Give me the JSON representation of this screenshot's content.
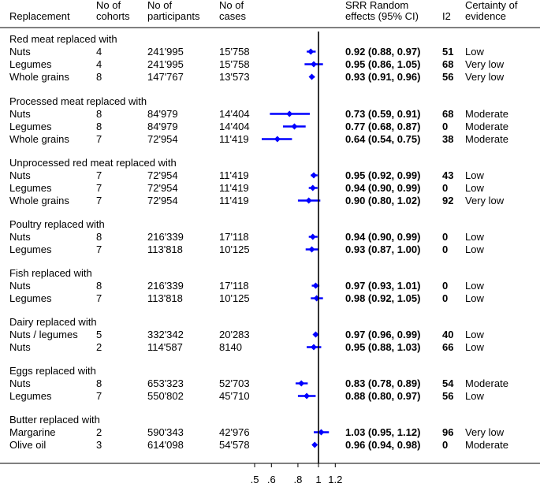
{
  "chart_data": {
    "type": "forest",
    "headers": {
      "replacement": "Replacement",
      "cohorts": [
        "No of",
        "cohorts"
      ],
      "participants": [
        "No of",
        "participants"
      ],
      "cases": [
        "No of",
        "cases"
      ],
      "effect": [
        "SRR Random",
        "effects (95% CI)"
      ],
      "i2": "I2",
      "certainty": [
        "Certainty of",
        "evidence"
      ]
    },
    "x_ticks": [
      ".5",
      ".6",
      ".8",
      "1",
      "1.2"
    ],
    "x_tick_values": [
      0.5,
      0.6,
      0.8,
      1.0,
      1.2
    ],
    "xlim": [
      0.4,
      1.26
    ],
    "x_scale": "log",
    "reference_line": 1,
    "marker_color": "#0000ff",
    "groups": [
      {
        "title": "Red meat replaced with",
        "rows": [
          {
            "label": "Nuts",
            "cohorts": "4",
            "participants": "241'995",
            "cases": "15'758",
            "rr": 0.92,
            "lo": 0.88,
            "hi": 0.97,
            "effect": "0.92 (0.88, 0.97)",
            "i2": "51",
            "certainty": "Low"
          },
          {
            "label": "Legumes",
            "cohorts": "4",
            "participants": "241'995",
            "cases": "15'758",
            "rr": 0.95,
            "lo": 0.86,
            "hi": 1.05,
            "effect": "0.95 (0.86, 1.05)",
            "i2": "68",
            "certainty": "Very low"
          },
          {
            "label": "Whole grains",
            "cohorts": "8",
            "participants": "147'767",
            "cases": "13'573",
            "rr": 0.93,
            "lo": 0.91,
            "hi": 0.96,
            "effect": "0.93 (0.91, 0.96)",
            "i2": "56",
            "certainty": "Very low"
          }
        ]
      },
      {
        "title": "Processed meat replaced with",
        "rows": [
          {
            "label": "Nuts",
            "cohorts": "8",
            "participants": "84'979",
            "cases": "14'404",
            "rr": 0.73,
            "lo": 0.59,
            "hi": 0.91,
            "effect": "0.73 (0.59, 0.91)",
            "i2": "68",
            "certainty": "Moderate"
          },
          {
            "label": "Legumes",
            "cohorts": "8",
            "participants": "84'979",
            "cases": "14'404",
            "rr": 0.77,
            "lo": 0.68,
            "hi": 0.87,
            "effect": "0.77 (0.68, 0.87)",
            "i2": "0",
            "certainty": "Moderate"
          },
          {
            "label": "Whole grains",
            "cohorts": "7",
            "participants": "72'954",
            "cases": "11'419",
            "rr": 0.64,
            "lo": 0.54,
            "hi": 0.75,
            "effect": "0.64 (0.54, 0.75)",
            "i2": "38",
            "certainty": "Moderate"
          }
        ]
      },
      {
        "title": "Unprocessed red meat replaced with",
        "rows": [
          {
            "label": "Nuts",
            "cohorts": "7",
            "participants": "72'954",
            "cases": "11'419",
            "rr": 0.95,
            "lo": 0.92,
            "hi": 0.99,
            "effect": "0.95 (0.92, 0.99)",
            "i2": "43",
            "certainty": "Low"
          },
          {
            "label": "Legumes",
            "cohorts": "7",
            "participants": "72'954",
            "cases": "11'419",
            "rr": 0.94,
            "lo": 0.9,
            "hi": 0.99,
            "effect": "0.94 (0.90, 0.99)",
            "i2": "0",
            "certainty": "Low"
          },
          {
            "label": "Whole grains",
            "cohorts": "7",
            "participants": "72'954",
            "cases": "11'419",
            "rr": 0.9,
            "lo": 0.8,
            "hi": 1.02,
            "effect": "0.90 (0.80, 1.02)",
            "i2": "92",
            "certainty": "Very low"
          }
        ]
      },
      {
        "title": "Poultry replaced with",
        "rows": [
          {
            "label": "Nuts",
            "cohorts": "8",
            "participants": "216'339",
            "cases": "17'118",
            "rr": 0.94,
            "lo": 0.9,
            "hi": 0.99,
            "effect": "0.94 (0.90, 0.99)",
            "i2": "0",
            "certainty": "Low"
          },
          {
            "label": "Legumes",
            "cohorts": "7",
            "participants": "113'818",
            "cases": "10'125",
            "rr": 0.93,
            "lo": 0.87,
            "hi": 1.0,
            "effect": "0.93 (0.87, 1.00)",
            "i2": "0",
            "certainty": "Low"
          }
        ]
      },
      {
        "title": "Fish replaced with",
        "rows": [
          {
            "label": "Nuts",
            "cohorts": "8",
            "participants": "216'339",
            "cases": "17'118",
            "rr": 0.97,
            "lo": 0.93,
            "hi": 1.01,
            "effect": "0.97 (0.93, 1.01)",
            "i2": "0",
            "certainty": "Low"
          },
          {
            "label": "Legumes",
            "cohorts": "7",
            "participants": "113'818",
            "cases": "10'125",
            "rr": 0.98,
            "lo": 0.92,
            "hi": 1.05,
            "effect": "0.98 (0.92, 1.05)",
            "i2": "0",
            "certainty": "Low"
          }
        ]
      },
      {
        "title": "Dairy replaced with",
        "rows": [
          {
            "label": "Nuts / legumes",
            "cohorts": "5",
            "participants": "332'342",
            "cases": "20'283",
            "rr": 0.97,
            "lo": 0.96,
            "hi": 0.99,
            "effect": "0.97 (0.96, 0.99)",
            "i2": "40",
            "certainty": "Low"
          },
          {
            "label": "Nuts",
            "cohorts": "2",
            "participants": "114'587",
            "cases": "8140",
            "rr": 0.95,
            "lo": 0.88,
            "hi": 1.03,
            "effect": "0.95 (0.88, 1.03)",
            "i2": "66",
            "certainty": "Low"
          }
        ]
      },
      {
        "title": "Eggs replaced with",
        "rows": [
          {
            "label": "Nuts",
            "cohorts": "8",
            "participants": "653'323",
            "cases": "52'703",
            "rr": 0.83,
            "lo": 0.78,
            "hi": 0.89,
            "effect": "0.83 (0.78, 0.89)",
            "i2": "54",
            "certainty": "Moderate"
          },
          {
            "label": "Legumes",
            "cohorts": "7",
            "participants": "550'802",
            "cases": "45'710",
            "rr": 0.88,
            "lo": 0.8,
            "hi": 0.97,
            "effect": "0.88 (0.80, 0.97)",
            "i2": "56",
            "certainty": "Low"
          }
        ]
      },
      {
        "title": "Butter replaced with",
        "rows": [
          {
            "label": "Margarine",
            "cohorts": "2",
            "participants": "590'343",
            "cases": "42'976",
            "rr": 1.03,
            "lo": 0.95,
            "hi": 1.12,
            "effect": "1.03 (0.95, 1.12)",
            "i2": "96",
            "certainty": "Very low"
          },
          {
            "label": "Olive oil",
            "cohorts": "3",
            "participants": "614'098",
            "cases": "54'578",
            "rr": 0.96,
            "lo": 0.94,
            "hi": 0.98,
            "effect": "0.96 (0.94, 0.98)",
            "i2": "0",
            "certainty": "Moderate"
          }
        ]
      }
    ]
  }
}
